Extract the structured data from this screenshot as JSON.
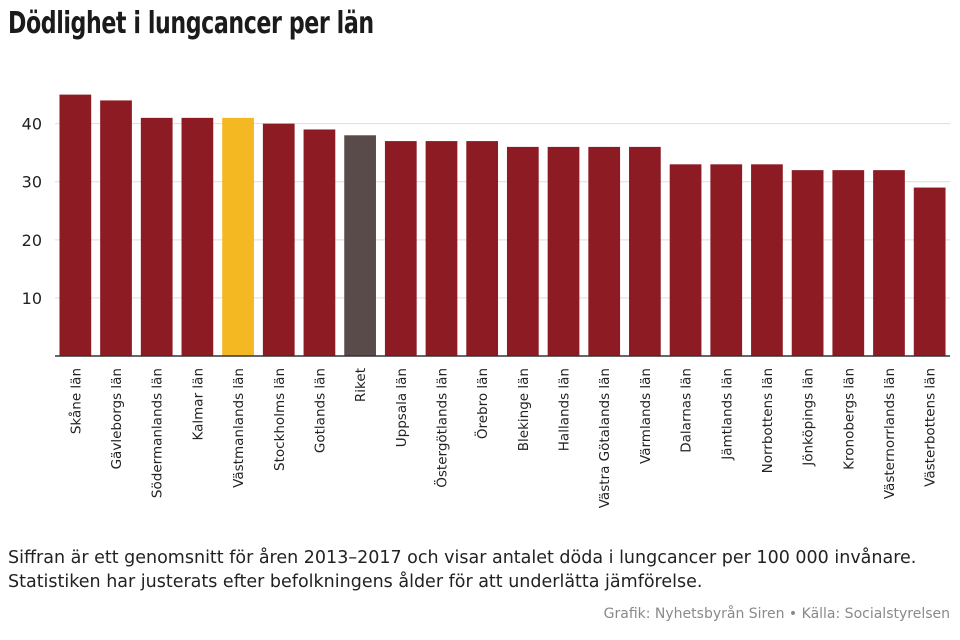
{
  "title": "Dödlighet i lungcancer per län",
  "note": "Siffran är ett genomsnitt för åren 2013–2017 och visar antalet döda i lungcancer per 100 000 invånare. Statistiken har justerats efter befolkningens ålder för att underlätta jämförelse.",
  "source": "Grafik: Nyhetsbyrån Siren • Källa: Socialstyrelsen",
  "colors": {
    "bar": "#8d1b24",
    "highlight": "#f4b823",
    "riket": "#5a4b4b",
    "grid": "#dddddd",
    "axis": "#333333"
  },
  "chart_data": {
    "type": "bar",
    "title": "Dödlighet i lungcancer per län",
    "categories": [
      "Skåne län",
      "Gävleborgs län",
      "Södermanlands län",
      "Kalmar län",
      "Västmanlands län",
      "Stockholms län",
      "Gotlands län",
      "Riket",
      "Uppsala län",
      "Östergötlands län",
      "Örebro län",
      "Blekinge län",
      "Hallands län",
      "Västra Götalands län",
      "Värmlands län",
      "Dalarnas län",
      "Jämtlands län",
      "Norrbottens län",
      "Jönköpings län",
      "Kronobergs län",
      "Västernorrlands län",
      "Västerbottens län"
    ],
    "values": [
      45,
      44,
      41,
      41,
      41,
      40,
      39,
      38,
      37,
      37,
      37,
      36,
      36,
      36,
      36,
      33,
      33,
      33,
      32,
      32,
      32,
      29
    ],
    "highlight": {
      "Västmanlands län": "#f4b823",
      "Riket": "#5a4b4b"
    },
    "yticks": [
      10,
      20,
      30,
      40
    ],
    "ylim": [
      0,
      47
    ],
    "grid": true,
    "legend": "none",
    "xlabel": "",
    "ylabel": ""
  }
}
